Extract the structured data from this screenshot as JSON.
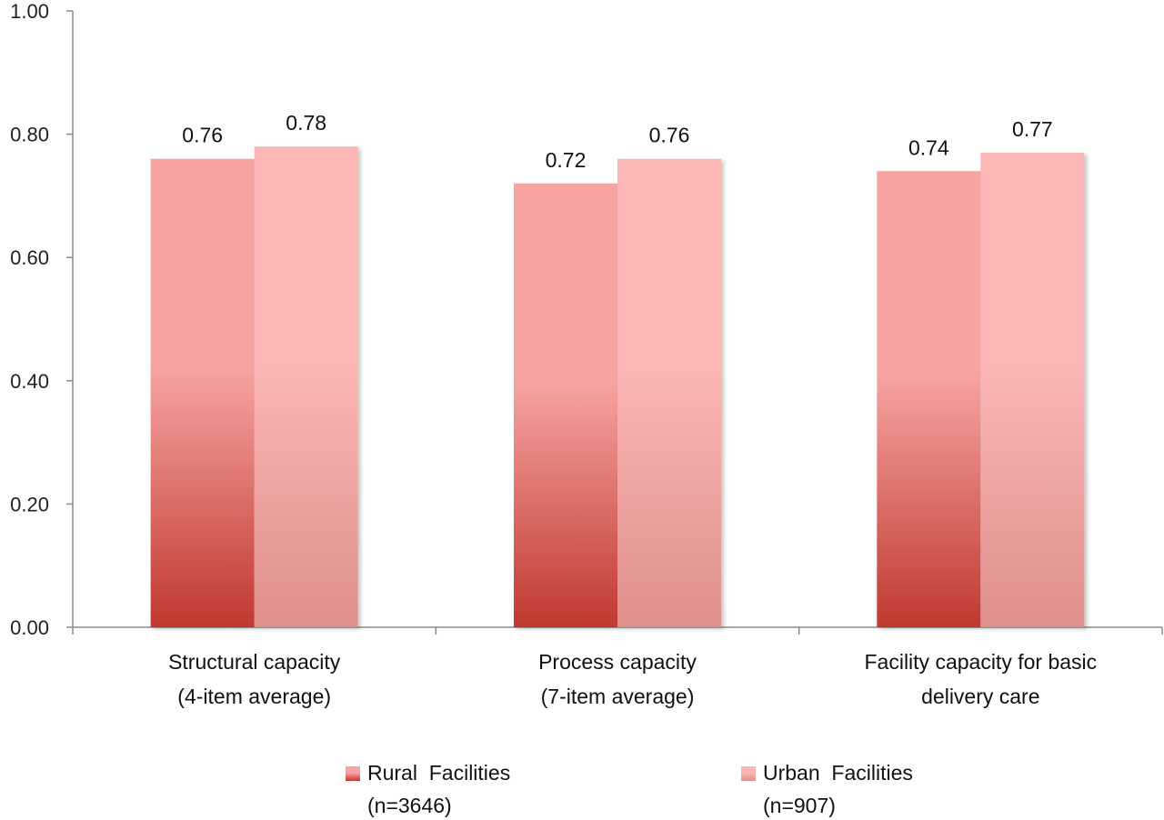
{
  "chart_data": {
    "type": "bar",
    "categories": [
      [
        "Structural capacity",
        "(4-item average)"
      ],
      [
        "Process capacity",
        "(7-item average)"
      ],
      [
        "Facility capacity for basic",
        "delivery care"
      ]
    ],
    "series": [
      {
        "name": [
          "Rural  Facilities",
          "(n=3646)"
        ],
        "values": [
          0.76,
          0.72,
          0.74
        ],
        "color_top": "#f6a3a1",
        "color_bottom": "#c0392f"
      },
      {
        "name": [
          "Urban  Facilities",
          "(n=907)"
        ],
        "values": [
          0.78,
          0.76,
          0.77
        ],
        "color_top": "#fbb6b5",
        "color_bottom": "#df8f8c"
      }
    ],
    "data_labels": [
      [
        "0.76",
        "0.72",
        "0.74"
      ],
      [
        "0.78",
        "0.76",
        "0.77"
      ]
    ],
    "y_ticks": [
      "0.00",
      "0.20",
      "0.40",
      "0.60",
      "0.80",
      "1.00"
    ],
    "ylim": [
      0,
      1
    ],
    "grid": false,
    "legend_position": "bottom"
  }
}
